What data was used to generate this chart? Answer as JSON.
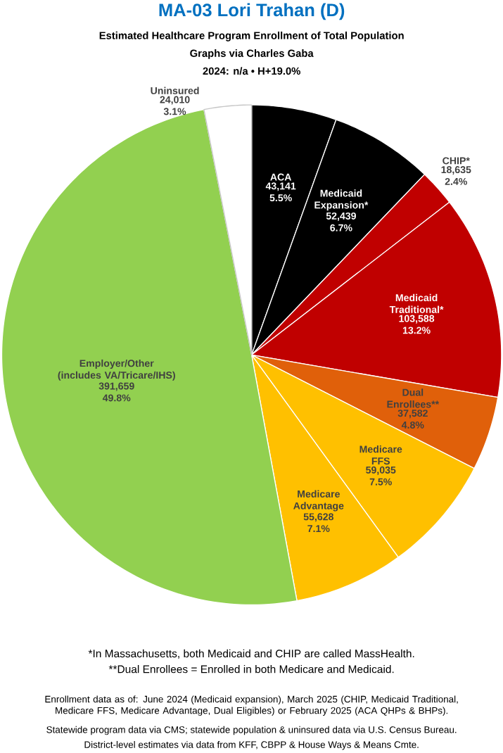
{
  "chart_data": {
    "type": "pie",
    "title": "MA-03 Lori Trahan (D)",
    "subtitle": "Estimated Healthcare Program Enrollment of Total Population",
    "categories": [
      "ACA",
      "Medicaid Expansion*",
      "CHIP*",
      "Medicaid Traditional*",
      "Dual Enrollees**",
      "Medicare FFS",
      "Medicare Advantage",
      "Employer/Other (includes VA/Tricare/IHS)",
      "Uninsured"
    ],
    "values": [
      43141,
      52439,
      18635,
      103588,
      37582,
      59035,
      55628,
      391659,
      24010
    ],
    "value_labels": [
      "43,141 5.5%",
      "52,439 6.7%",
      "18,635 2.4%",
      "103,588 13.2%",
      "37,582 4.8%",
      "59,035 7.5%",
      "55,628 7.1%",
      "391,659 49.8%",
      "24,010 3.1%"
    ],
    "colors": [
      "#000000",
      "#000000",
      "#c00000",
      "#c00000",
      "#e0600a",
      "#ffc000",
      "#ffc000",
      "#92d050",
      "#ffffff"
    ],
    "annotations": [
      "Graphs via Charles Gaba",
      "2024: n/a • H+19.0%",
      "*In Massachusetts, both Medicaid and CHIP are called MassHealth.",
      "**Dual Enrollees = Enrolled in both Medicare and Medicaid.",
      "Enrollment data as of: June 2024 (Medicaid expansion), March 2025 (CHIP, Medicaid Traditional, Medicare FFS, Medicare Advantage, Dual Eligibles) or February 2025 (ACA QHPs & BHPs).",
      "Statewide program data via CMS; statewide population & uninsured data via U.S. Census Bureau.",
      "District-level estimates via data from KFF, CBPP & House Ways & Means Cmte."
    ]
  }
}
